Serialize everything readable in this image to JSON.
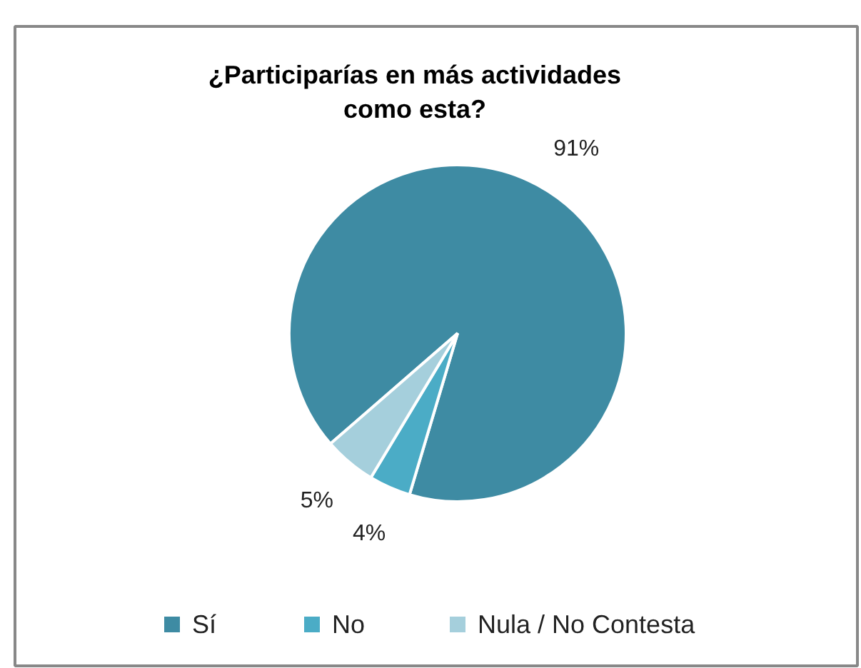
{
  "chart_data": {
    "type": "pie",
    "title": "¿Participarías en más actividades como esta?",
    "categories": [
      "Sí",
      "No",
      "Nula / No Contesta"
    ],
    "values": [
      91,
      4,
      5
    ],
    "colors": [
      "#3e8ba3",
      "#4bacc6",
      "#a5cfdc"
    ],
    "value_labels": [
      "91%",
      "4%",
      "5%"
    ],
    "legend": "bottom"
  }
}
